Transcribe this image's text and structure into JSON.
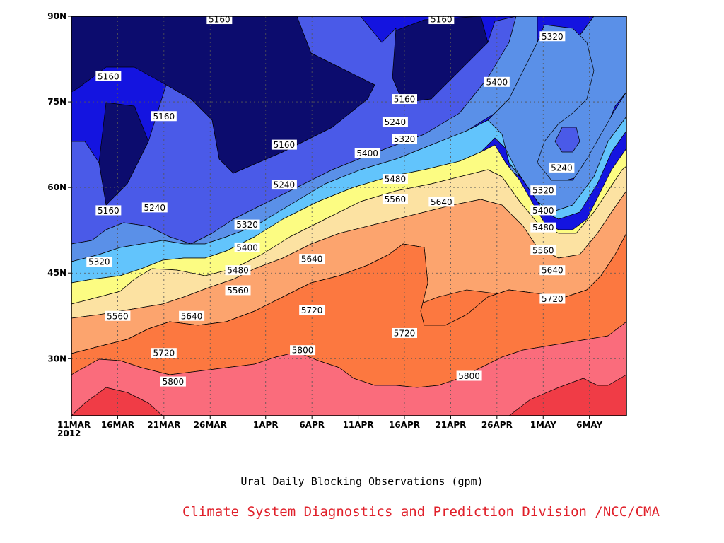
{
  "chart_data": {
    "type": "heatmap",
    "subtype": "filled-contour",
    "title": "Ural Daily Blocking Observations (gpm)",
    "x_ticks": [
      "11MAR\n2012",
      "16MAR",
      "21MAR",
      "26MAR",
      "1APR",
      "6APR",
      "11APR",
      "16APR",
      "21APR",
      "26APR",
      "1MAY",
      "6MAY"
    ],
    "y_ticks": [
      "30N",
      "45N",
      "60N",
      "75N",
      "90N"
    ],
    "x_range": [
      "11MAR2012",
      "10MAY2012"
    ],
    "y_range": [
      20,
      90
    ],
    "levels": [
      5160,
      5240,
      5320,
      5400,
      5480,
      5560,
      5640,
      5720,
      5800
    ],
    "level_colors": [
      "#0c0c6e",
      "#1414e0",
      "#4a5ae8",
      "#5a90e8",
      "#62c4fc",
      "#fcfc82",
      "#fce2a2",
      "#fca46e",
      "#fc7840",
      "#fa6c7c",
      "#f03c46"
    ],
    "contour_labels": [
      {
        "value": "5160",
        "date": "2012-03-27",
        "lat": 89.5
      },
      {
        "value": "5160",
        "date": "2012-04-20",
        "lat": 89.5
      },
      {
        "value": "5160",
        "date": "2012-03-15",
        "lat": 79.5
      },
      {
        "value": "5160",
        "date": "2012-03-21",
        "lat": 72.5
      },
      {
        "value": "5160",
        "date": "2012-04-16",
        "lat": 75.5
      },
      {
        "value": "5160",
        "date": "2012-04-03",
        "lat": 67.5
      },
      {
        "value": "5160",
        "date": "2012-03-15",
        "lat": 56
      },
      {
        "value": "5240",
        "date": "2012-04-15",
        "lat": 71.5
      },
      {
        "value": "5240",
        "date": "2012-03-20",
        "lat": 56.5
      },
      {
        "value": "5240",
        "date": "2012-04-03",
        "lat": 60.5
      },
      {
        "value": "5240",
        "date": "2012-05-03",
        "lat": 63.5
      },
      {
        "value": "5320",
        "date": "2012-05-02",
        "lat": 86.5
      },
      {
        "value": "5320",
        "date": "2012-04-16",
        "lat": 68.5
      },
      {
        "value": "5320",
        "date": "2012-03-30",
        "lat": 53.5
      },
      {
        "value": "5320",
        "date": "2012-03-14",
        "lat": 47
      },
      {
        "value": "5320",
        "date": "2012-05-01",
        "lat": 59.5
      },
      {
        "value": "5400",
        "date": "2012-04-26",
        "lat": 78.5
      },
      {
        "value": "5400",
        "date": "2012-04-12",
        "lat": 66
      },
      {
        "value": "5400",
        "date": "2012-03-30",
        "lat": 49.5
      },
      {
        "value": "5400",
        "date": "2012-05-01",
        "lat": 56
      },
      {
        "value": "5480",
        "date": "2012-04-15",
        "lat": 61.5
      },
      {
        "value": "5480",
        "date": "2012-03-29",
        "lat": 45.5
      },
      {
        "value": "5480",
        "date": "2012-05-01",
        "lat": 53
      },
      {
        "value": "5560",
        "date": "2012-04-15",
        "lat": 58
      },
      {
        "value": "5560",
        "date": "2012-03-29",
        "lat": 42
      },
      {
        "value": "5560",
        "date": "2012-03-16",
        "lat": 37.5
      },
      {
        "value": "5560",
        "date": "2012-05-01",
        "lat": 49
      },
      {
        "value": "5640",
        "date": "2012-04-20",
        "lat": 57.5
      },
      {
        "value": "5640",
        "date": "2012-04-06",
        "lat": 47.5
      },
      {
        "value": "5640",
        "date": "2012-03-24",
        "lat": 37.5
      },
      {
        "value": "5640",
        "date": "2012-05-02",
        "lat": 45.5
      },
      {
        "value": "5720",
        "date": "2012-04-06",
        "lat": 38.5
      },
      {
        "value": "5720",
        "date": "2012-04-16",
        "lat": 34.5
      },
      {
        "value": "5720",
        "date": "2012-05-02",
        "lat": 40.5
      },
      {
        "value": "5720",
        "date": "2012-03-21",
        "lat": 31
      },
      {
        "value": "5800",
        "date": "2012-04-05",
        "lat": 31.5
      },
      {
        "value": "5800",
        "date": "2012-03-22",
        "lat": 26
      },
      {
        "value": "5800",
        "date": "2012-04-23",
        "lat": 27
      }
    ],
    "grid": true,
    "source": "Climate System Diagnostics and Prediction Division /NCC/CMA"
  }
}
